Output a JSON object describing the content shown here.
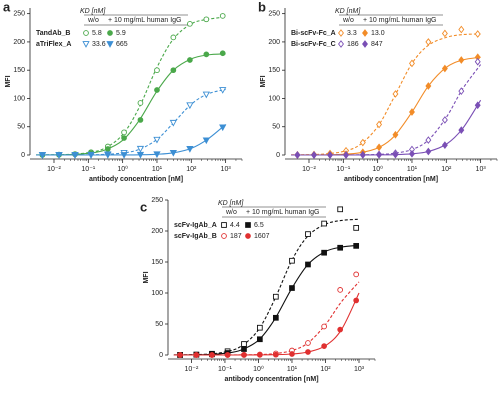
{
  "chart_data": [
    {
      "type": "scatter",
      "panel_label": "a",
      "xlabel": "antibody concentration [nM]",
      "ylabel": "MFI",
      "log_x": true,
      "xlim": [
        0.002,
        3000
      ],
      "xticks": [
        {
          "value": 0.01,
          "label": "10⁻²"
        },
        {
          "value": 0.1,
          "label": "10⁻¹"
        },
        {
          "value": 1,
          "label": "10⁰"
        },
        {
          "value": 10,
          "label": "10¹"
        },
        {
          "value": 100,
          "label": "10²"
        },
        {
          "value": 1000,
          "label": "10³"
        }
      ],
      "ylim": [
        0,
        260
      ],
      "yticks": [
        0,
        50,
        100,
        150,
        200,
        250
      ],
      "legend_header": "KD [nM]",
      "legend_columns": [
        "w/o",
        "+ 10 mg/mL human IgG"
      ],
      "x": [
        0.0046,
        0.014,
        0.041,
        0.12,
        0.37,
        1.1,
        3.3,
        10,
        30,
        91,
        274,
        823
      ],
      "fit_x": [
        0.003,
        0.01,
        0.03,
        0.1,
        0.3,
        1,
        3,
        10,
        30,
        100,
        300,
        1000
      ],
      "groups": [
        {
          "name": "TandAb_B",
          "series": [
            {
              "color": "#4aa84a",
              "marker": "circle-open",
              "dash": true,
              "kd": 5.8,
              "values": [
                0.2,
                0.7,
                1.7,
                5,
                15,
                40,
                92,
                150,
                208,
                232,
                240,
                246
              ],
              "fit": [
                0.13,
                0.42,
                1.26,
                4.15,
                12,
                36,
                83.5,
                155,
                205,
                232,
                240,
                244
              ]
            },
            {
              "color": "#4aa84a",
              "marker": "circle",
              "dash": false,
              "kd": 5.9,
              "values": [
                0.1,
                0.4,
                1.2,
                3.6,
                10.6,
                30,
                62,
                115,
                150,
                168,
                178,
                180
              ],
              "fit": [
                0.09,
                0.3,
                0.9,
                3,
                8.7,
                26,
                60.7,
                113,
                150,
                170,
                177,
                179
              ]
            }
          ]
        },
        {
          "name": "aTriFlex_A",
          "series": [
            {
              "color": "#3c8fd4",
              "marker": "tri-open",
              "dash": true,
              "kd": 33.6,
              "values": [
                0,
                0,
                0.1,
                0.4,
                1.3,
                3.8,
                11,
                27,
                57,
                88,
                107,
                115
              ],
              "fit": [
                0,
                0.04,
                0.1,
                0.36,
                1.06,
                3.5,
                9.8,
                27.5,
                56.6,
                89.8,
                108,
                116
              ]
            },
            {
              "color": "#3c8fd4",
              "marker": "tri",
              "dash": false,
              "kd": 665,
              "values": [
                0,
                0,
                0,
                0,
                0.05,
                0.15,
                0.4,
                1.3,
                3.9,
                10.8,
                26,
                49
              ],
              "fit": [
                0,
                0,
                0,
                0.01,
                0.04,
                0.14,
                0.4,
                1.3,
                3.9,
                11.8,
                28,
                54
              ]
            }
          ]
        }
      ]
    },
    {
      "type": "scatter",
      "panel_label": "b",
      "xlabel": "antibody concentration [nM]",
      "ylabel": "MFI",
      "log_x": true,
      "xlim": [
        0.002,
        3000
      ],
      "xticks": [
        {
          "value": 0.01,
          "label": "10⁻²"
        },
        {
          "value": 0.1,
          "label": "10⁻¹"
        },
        {
          "value": 1,
          "label": "10⁰"
        },
        {
          "value": 10,
          "label": "10¹"
        },
        {
          "value": 100,
          "label": "10²"
        },
        {
          "value": 1000,
          "label": "10³"
        }
      ],
      "ylim": [
        0,
        260
      ],
      "yticks": [
        0,
        50,
        100,
        150,
        200,
        250
      ],
      "legend_header": "KD [nM]",
      "legend_columns": [
        "w/o",
        "+ 10 mg/mL human IgG"
      ],
      "x": [
        0.0046,
        0.014,
        0.041,
        0.12,
        0.37,
        1.1,
        3.3,
        10,
        30,
        91,
        274,
        823
      ],
      "fit_x": [
        0.003,
        0.01,
        0.03,
        0.1,
        0.3,
        1,
        3,
        10,
        30,
        100,
        300,
        1000
      ],
      "groups": [
        {
          "name": "Bi-scFv-Fc_A",
          "series": [
            {
              "color": "#f28c28",
              "marker": "diamond-open",
              "dash": true,
              "kd": 3.3,
              "values": [
                0.3,
                0.9,
                2.6,
                7.5,
                22,
                54,
                108,
                162,
                200,
                215,
                222,
                214
              ],
              "fit": [
                0.2,
                0.65,
                1.9,
                6.3,
                17.9,
                50,
                102,
                162,
                194,
                208,
                213,
                214
              ]
            },
            {
              "color": "#f28c28",
              "marker": "diamond",
              "dash": false,
              "kd": {
                "value": 13,
                "label": "13.0"
              },
              "values": [
                0,
                0.2,
                0.6,
                1.6,
                4.9,
                13.6,
                35.8,
                76,
                122,
                153,
                168,
                173
              ],
              "fit": [
                0.04,
                0.13,
                0.4,
                1.3,
                3.9,
                12.3,
                32.8,
                76,
                122,
                155,
                168,
                173
              ]
            }
          ]
        },
        {
          "name": "Bi-scFv-Fc_C",
          "series": [
            {
              "color": "#7a4fb5",
              "marker": "diamond-open",
              "dash": true,
              "kd": 186,
              "values": [
                0,
                0,
                0,
                0.1,
                0.4,
                1.1,
                3.3,
                9.7,
                26.4,
                62,
                113,
                165
              ],
              "fit": [
                0,
                0,
                0,
                0.1,
                0.3,
                1,
                3,
                9.7,
                26.4,
                66.5,
                117,
                160
              ]
            },
            {
              "color": "#7a4fb5",
              "marker": "diamond",
              "dash": false,
              "kd": 847,
              "values": [
                0,
                0,
                0,
                0,
                0.1,
                0.2,
                0.7,
                2.1,
                6.2,
                17.5,
                44,
                88
              ],
              "fit": [
                0,
                0,
                0,
                0,
                0.06,
                0.2,
                0.6,
                2.1,
                6.2,
                19,
                47,
                97
              ]
            }
          ]
        }
      ]
    },
    {
      "type": "scatter",
      "panel_label": "c",
      "xlabel": "antibody concentration [nM]",
      "ylabel": "MFI",
      "log_x": true,
      "xlim": [
        0.002,
        3000
      ],
      "xticks": [
        {
          "value": 0.01,
          "label": "10⁻²"
        },
        {
          "value": 0.1,
          "label": "10⁻¹"
        },
        {
          "value": 1,
          "label": "10⁰"
        },
        {
          "value": 10,
          "label": "10¹"
        },
        {
          "value": 100,
          "label": "10²"
        },
        {
          "value": 1000,
          "label": "10³"
        }
      ],
      "ylim": [
        0,
        250
      ],
      "yticks": [
        0,
        50,
        100,
        150,
        200,
        250
      ],
      "legend_header": "KD [nM]",
      "legend_columns": [
        "w/o",
        "+ 10 mg/mL human IgG"
      ],
      "x": [
        0.0046,
        0.014,
        0.041,
        0.12,
        0.37,
        1.1,
        3.3,
        10,
        30,
        91,
        274,
        823
      ],
      "fit_x": [
        0.003,
        0.01,
        0.03,
        0.1,
        0.3,
        1,
        3,
        10,
        30,
        100,
        300,
        1000
      ],
      "groups": [
        {
          "name": "scFv-IgAb_A",
          "series": [
            {
              "color": "#111111",
              "marker": "square-open",
              "dash": true,
              "kd": 4.4,
              "values": [
                0.2,
                0.7,
                2,
                6,
                17.7,
                44,
                94,
                152,
                195,
                212,
                235,
                205
              ],
              "fit": [
                0.15,
                0.5,
                1.5,
                4.9,
                14,
                40.7,
                89,
                153,
                192,
                211,
                217,
                219
              ]
            },
            {
              "color": "#111111",
              "marker": "square",
              "dash": false,
              "kd": 6.5,
              "values": [
                0.1,
                0.4,
                1.1,
                3.2,
                9.6,
                25.4,
                60,
                108,
                146,
                165,
                173,
                176
              ],
              "fit": [
                0.08,
                0.27,
                0.8,
                2.7,
                7.9,
                23.8,
                57,
                108,
                146,
                167,
                174,
                177
              ]
            }
          ]
        },
        {
          "name": "scFv-IgAb_B",
          "series": [
            {
              "color": "#e03030",
              "marker": "circle-open",
              "dash": true,
              "kd": 187,
              "values": [
                0,
                0,
                0,
                0.1,
                0.3,
                0.8,
                2.4,
                7.2,
                19.4,
                46,
                105,
                130
              ],
              "fit": [
                0,
                0,
                0,
                0.07,
                0.2,
                0.7,
                2.2,
                7.2,
                19.4,
                49,
                86,
                118
              ]
            },
            {
              "color": "#e03030",
              "marker": "circle",
              "dash": false,
              "kd": 1607,
              "values": [
                0,
                0,
                0,
                0,
                0.06,
                0.2,
                0.5,
                1.6,
                4.8,
                14.3,
                41,
                88
              ],
              "fit": [
                0,
                0,
                0,
                0,
                0.05,
                0.16,
                0.5,
                1.6,
                4.8,
                15,
                41,
                100
              ]
            }
          ]
        }
      ]
    }
  ]
}
